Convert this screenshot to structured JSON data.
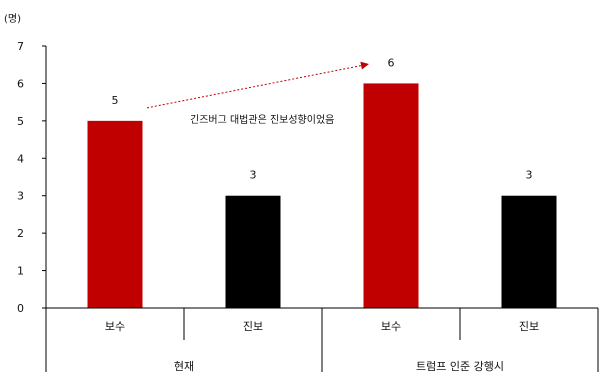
{
  "chart_data": {
    "type": "bar",
    "unit_label": "(명)",
    "ylim": [
      0,
      7
    ],
    "y_ticks": [
      0,
      1,
      2,
      3,
      4,
      5,
      6,
      7
    ],
    "grid": false,
    "legend": "none",
    "bars": [
      {
        "group": "현재",
        "category": "보수",
        "value": 5,
        "color": "#C00000"
      },
      {
        "group": "현재",
        "category": "진보",
        "value": 3,
        "color": "#000000"
      },
      {
        "group": "트럼프 인준 강행시",
        "category": "보수",
        "value": 6,
        "color": "#C00000"
      },
      {
        "group": "트럼프 인준 강행시",
        "category": "진보",
        "value": 3,
        "color": "#000000"
      }
    ],
    "groups": [
      "현재",
      "트럼프 인준 강행시"
    ],
    "annotation": {
      "text": "긴즈버그 대법관은 진보성향이었음",
      "arrow_from_bar": 0,
      "arrow_to_bar": 2,
      "arrow_color": "#C00000"
    }
  }
}
